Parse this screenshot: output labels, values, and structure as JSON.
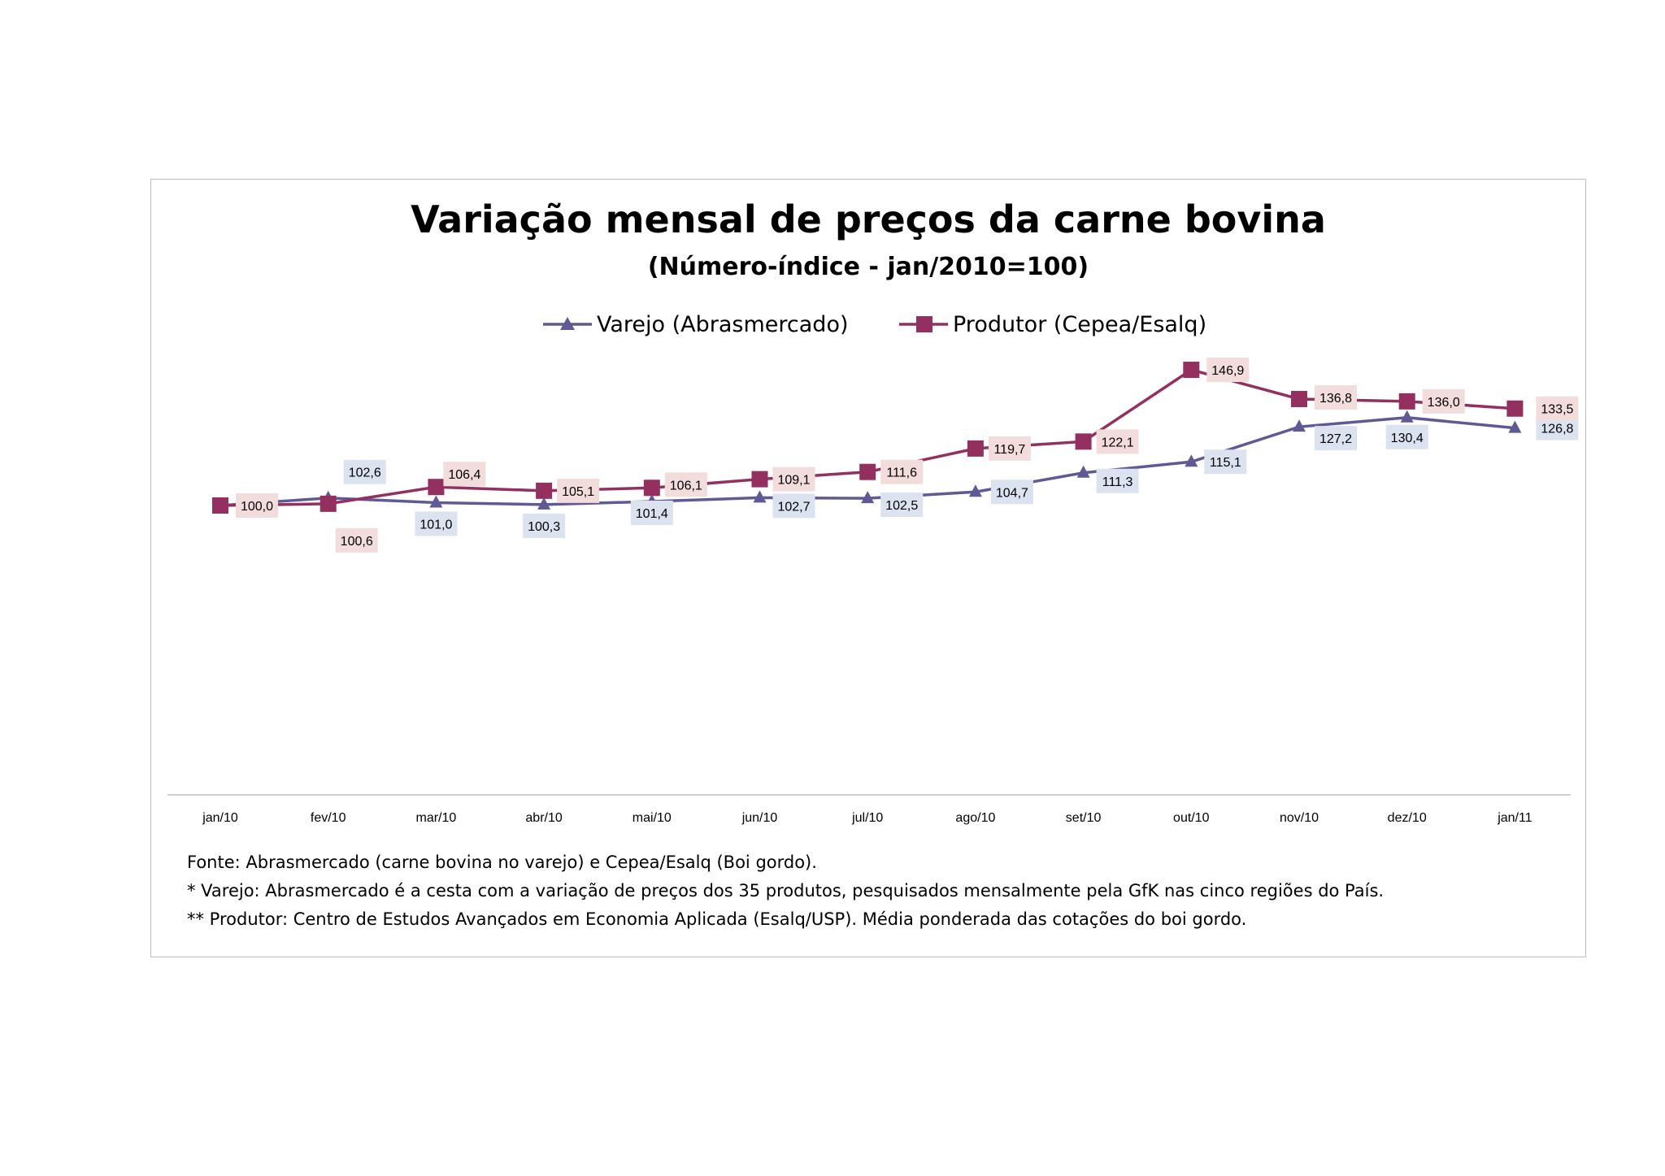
{
  "chart_data": {
    "type": "line",
    "title": "Variação mensal de preços da carne bovina",
    "subtitle": "(Número-índice - jan/2010=100)",
    "categories": [
      "jan/10",
      "fev/10",
      "mar/10",
      "abr/10",
      "mai/10",
      "jun/10",
      "jul/10",
      "ago/10",
      "set/10",
      "out/10",
      "nov/10",
      "dez/10",
      "jan/11"
    ],
    "series": [
      {
        "name": "Varejo (Abrasmercado)",
        "color": "#5f5a96",
        "marker": "triangle",
        "label_bg": "#dbe2f0",
        "values": [
          100.0,
          102.6,
          101.0,
          100.3,
          101.4,
          102.7,
          102.5,
          104.7,
          111.3,
          115.1,
          127.2,
          130.4,
          126.8
        ],
        "labels": [
          "",
          "102,6",
          "101,0",
          "100,3",
          "101,4",
          "102,7",
          "102,5",
          "104,7",
          "111,3",
          "115,1",
          "127,2",
          "130,4",
          "126,8"
        ]
      },
      {
        "name": "Produtor (Cepea/Esalq)",
        "color": "#93305f",
        "marker": "square",
        "label_bg": "#f3dcdc",
        "values": [
          100.0,
          100.6,
          106.4,
          105.1,
          106.1,
          109.1,
          111.6,
          119.7,
          122.1,
          146.9,
          136.8,
          136.0,
          133.5
        ],
        "labels": [
          "100,0",
          "100,6",
          "106,4",
          "105,1",
          "106,1",
          "109,1",
          "111,6",
          "119,7",
          "122,1",
          "146,9",
          "136,8",
          "136,0",
          "133,5"
        ]
      }
    ],
    "ylim": [
      10,
      160
    ],
    "grid": false,
    "legend": "top-center"
  },
  "notes": [
    "Fonte: Abrasmercado (carne bovina no varejo) e Cepea/Esalq (Boi gordo).",
    "* Varejo: Abrasmercado é a cesta com a variação de preços dos 35 produtos, pesquisados mensalmente pela GfK nas cinco regiões do País.",
    "** Produtor: Centro de Estudos Avançados em Economia Aplicada (Esalq/USP). Média ponderada das cotações do boi gordo."
  ]
}
